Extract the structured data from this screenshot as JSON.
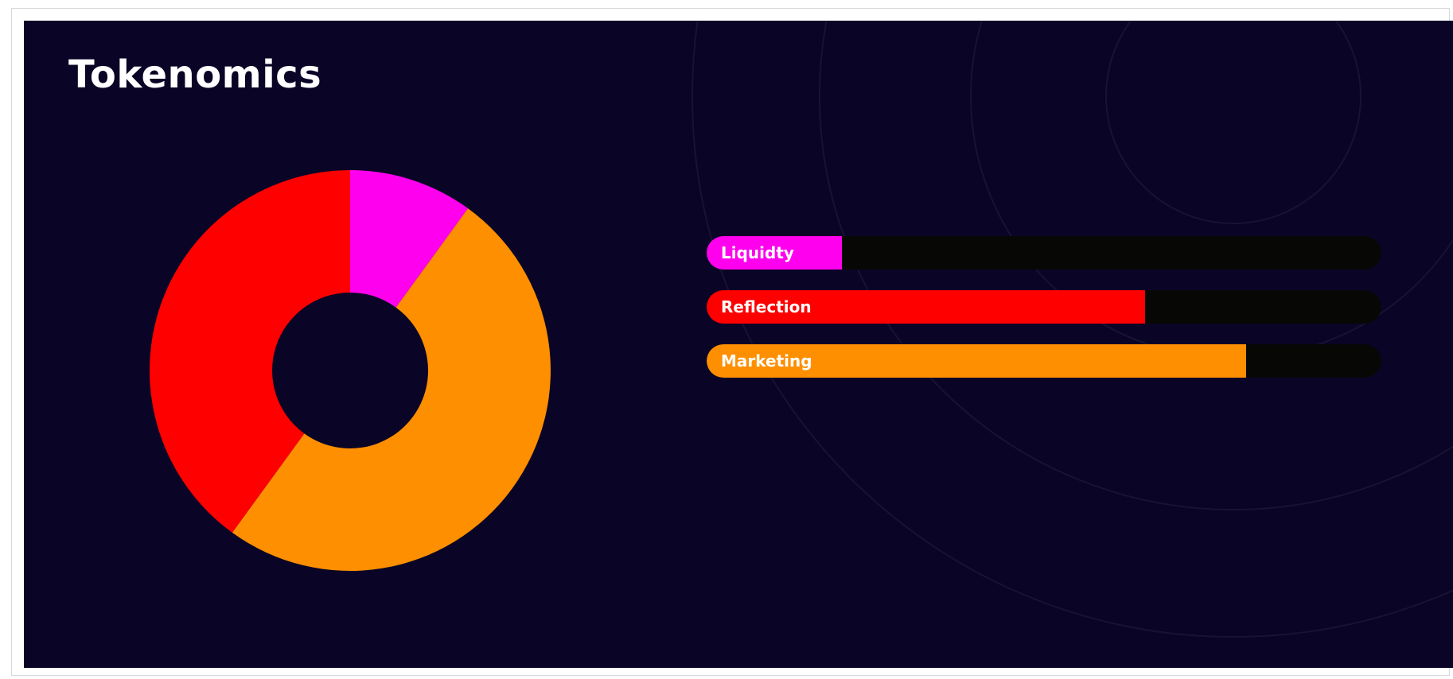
{
  "section": {
    "title": "Tokenomics"
  },
  "colors": {
    "background": "#0a0526",
    "track": "#070706",
    "liquidity": "#ff00ee",
    "reflection": "#fe0000",
    "marketing": "#fe8f00"
  },
  "chart_data": [
    {
      "type": "pie",
      "style": "donut",
      "slices": [
        {
          "name": "Liquidty",
          "value": 10,
          "color": "#ff00ee"
        },
        {
          "name": "Marketing",
          "value": 50,
          "color": "#fe8f00"
        },
        {
          "name": "Reflection",
          "value": 40,
          "color": "#fe0000"
        }
      ]
    },
    {
      "type": "bar",
      "orientation": "horizontal",
      "categories": [
        "Liquidty",
        "Reflection",
        "Marketing"
      ],
      "values": [
        20,
        65,
        80
      ],
      "max": 100,
      "colors": [
        "#ff00ee",
        "#fe0000",
        "#fe8f00"
      ]
    }
  ]
}
